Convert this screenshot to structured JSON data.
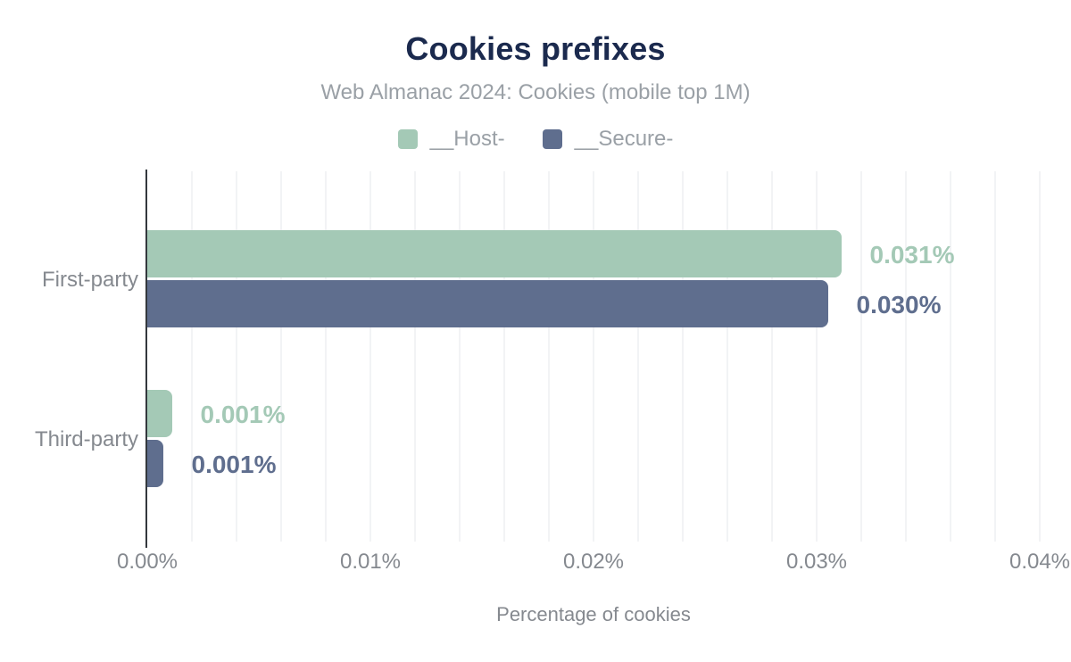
{
  "chart_data": {
    "type": "bar",
    "orientation": "horizontal",
    "title": "Cookies prefixes",
    "subtitle": "Web Almanac 2024: Cookies (mobile top 1M)",
    "xlabel": "Percentage of cookies",
    "categories": [
      "First-party",
      "Third-party"
    ],
    "series": [
      {
        "name": "__Host-",
        "color": "#a4c9b6",
        "values": [
          0.031,
          0.001
        ],
        "value_labels": [
          "0.031%",
          "0.001%"
        ],
        "bar_values": [
          0.0311,
          0.0011
        ]
      },
      {
        "name": "__Secure-",
        "color": "#5f6e8e",
        "values": [
          0.03,
          0.001
        ],
        "value_labels": [
          "0.030%",
          "0.001%"
        ],
        "bar_values": [
          0.0305,
          0.0007
        ]
      }
    ],
    "xlim": [
      0,
      0.04
    ],
    "x_ticks": [
      "0.00%",
      "0.01%",
      "0.02%",
      "0.03%",
      "0.04%"
    ],
    "x_tick_values": [
      0,
      0.01,
      0.02,
      0.03,
      0.04
    ],
    "grid": {
      "show": true,
      "minor_step": 0.002
    },
    "legend_position": "top"
  },
  "colors": {
    "title_text": "#1b2a4e",
    "subtitle_text": "#9aa0a6",
    "legend_text": "#9aa0a6",
    "axis_line": "#33383d",
    "gridline": "#f2f3f5",
    "tick_text": "#85898f",
    "category_text": "#85898f",
    "axis_title_text": "#85898f",
    "host_series": "#a4c9b6",
    "secure_series": "#5f6e8e"
  }
}
